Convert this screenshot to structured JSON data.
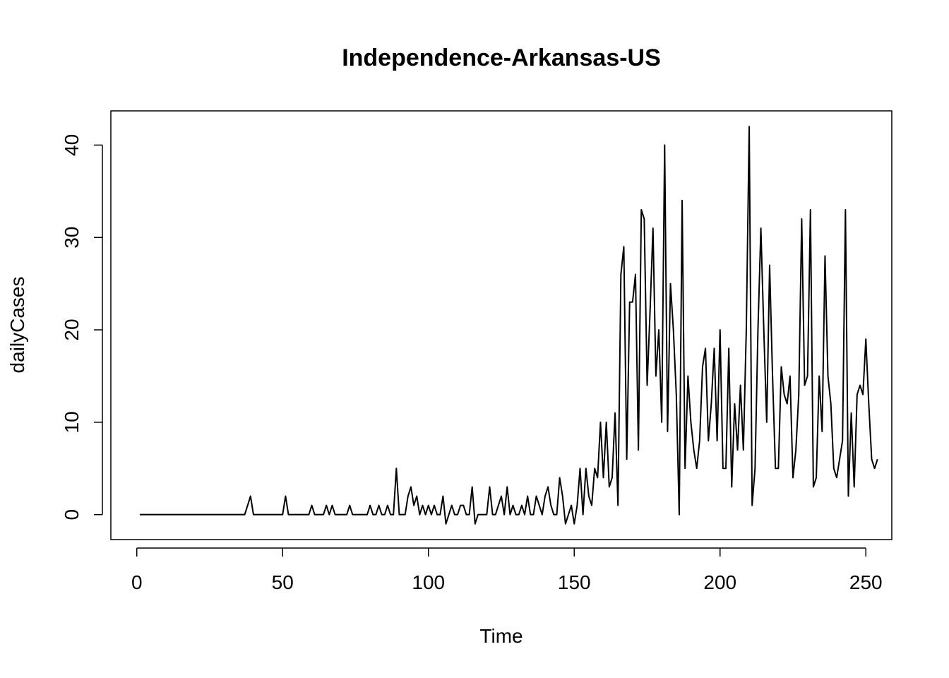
{
  "chart_data": {
    "type": "line",
    "title": "Independence-Arkansas-US",
    "xlabel": "Time",
    "ylabel": "dailyCases",
    "xlim": [
      -8.9,
      258.9
    ],
    "ylim": [
      -2.7,
      43.7
    ],
    "x_ticks": [
      0,
      50,
      100,
      150,
      200,
      250
    ],
    "y_ticks": [
      0,
      10,
      20,
      30,
      40
    ],
    "grid": false,
    "legend": "none",
    "line_color": "#000000",
    "x_start": 1,
    "series": [
      {
        "values": [
          0,
          0,
          0,
          0,
          0,
          0,
          0,
          0,
          0,
          0,
          0,
          0,
          0,
          0,
          0,
          0,
          0,
          0,
          0,
          0,
          0,
          0,
          0,
          0,
          0,
          0,
          0,
          0,
          0,
          0,
          0,
          0,
          0,
          0,
          0,
          0,
          0,
          1,
          2,
          0,
          0,
          0,
          0,
          0,
          0,
          0,
          0,
          0,
          0,
          0,
          2,
          0,
          0,
          0,
          0,
          0,
          0,
          0,
          0,
          1,
          0,
          0,
          0,
          0,
          1,
          0,
          1,
          0,
          0,
          0,
          0,
          0,
          1,
          0,
          0,
          0,
          0,
          0,
          0,
          1,
          0,
          0,
          1,
          0,
          0,
          1,
          0,
          0,
          5,
          0,
          0,
          0,
          2,
          3,
          1,
          2,
          0,
          1,
          0,
          1,
          0,
          1,
          0,
          0,
          2,
          -1,
          0,
          1,
          0,
          0,
          1,
          1,
          0,
          0,
          3,
          -1,
          0,
          0,
          0,
          0,
          3,
          0,
          0,
          1,
          2,
          0,
          3,
          0,
          1,
          0,
          0,
          1,
          0,
          2,
          0,
          0,
          2,
          1,
          0,
          2,
          3,
          1,
          0,
          0,
          4,
          2,
          -1,
          0,
          1,
          -1,
          1,
          5,
          0,
          5,
          2,
          1,
          5,
          4,
          10,
          4,
          10,
          3,
          4,
          11,
          1,
          26,
          29,
          6,
          23,
          23,
          26,
          7,
          33,
          32,
          14,
          22,
          31,
          15,
          20,
          10,
          40,
          9,
          25,
          20,
          13,
          0,
          34,
          5,
          15,
          10,
          7,
          5,
          8,
          16,
          18,
          8,
          12,
          18,
          8,
          20,
          5,
          5,
          18,
          3,
          12,
          7,
          14,
          7,
          20,
          42,
          1,
          5,
          20,
          31,
          20,
          10,
          27,
          15,
          5,
          5,
          16,
          13,
          12,
          15,
          4,
          7,
          13,
          32,
          14,
          15,
          33,
          3,
          4,
          15,
          9,
          28,
          15,
          12,
          5,
          4,
          6,
          8,
          33,
          2,
          11,
          3,
          13,
          14,
          13,
          19,
          12,
          6,
          5,
          6
        ]
      }
    ]
  }
}
